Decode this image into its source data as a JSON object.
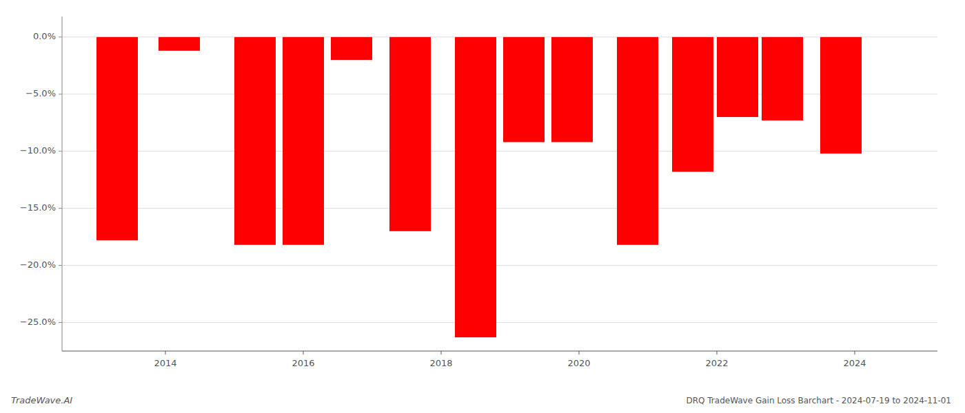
{
  "chart_data": {
    "type": "bar",
    "title": "DRQ TradeWave Gain Loss Barchart - 2024-07-19 to 2024-11-01",
    "annotations": [
      {
        "text": "TradeWave.AI"
      }
    ],
    "x": [
      2013.3,
      2014.2,
      2015.3,
      2016.0,
      2016.7,
      2017.55,
      2018.5,
      2019.2,
      2019.9,
      2020.85,
      2021.65,
      2022.3,
      2022.95,
      2023.8
    ],
    "values": [
      -17.8,
      -1.2,
      -18.2,
      -18.2,
      -2.0,
      -17.0,
      -26.3,
      -9.2,
      -9.2,
      -18.2,
      -11.8,
      -7.0,
      -7.3,
      -10.2
    ],
    "color": "#ff0000",
    "xlim": [
      2012.5,
      2025.2
    ],
    "xticks": [
      2014,
      2016,
      2018,
      2020,
      2022,
      2024
    ],
    "ylim": [
      -27.5,
      1.8
    ],
    "yticks": [
      {
        "value": 0.0,
        "label": "0.0%"
      },
      {
        "value": -5.0,
        "label": "−5.0%"
      },
      {
        "value": -10.0,
        "label": "−10.0%"
      },
      {
        "value": -15.0,
        "label": "−15.0%"
      },
      {
        "value": -20.0,
        "label": "−20.0%"
      },
      {
        "value": -25.0,
        "label": "−25.0%"
      }
    ],
    "grid": true
  }
}
